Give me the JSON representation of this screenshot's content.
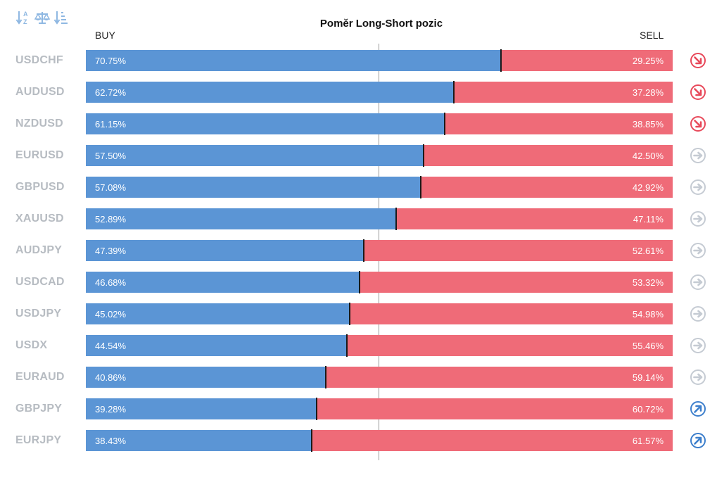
{
  "chart_data": {
    "type": "bar",
    "title": "Poměr Long-Short pozic",
    "xlabel": "",
    "ylabel": "",
    "left_label": "BUY",
    "right_label": "SELL",
    "xlim": [
      0,
      100
    ],
    "grid": false,
    "categories": [
      "USDCHF",
      "AUDUSD",
      "NZDUSD",
      "EURUSD",
      "GBPUSD",
      "XAUUSD",
      "AUDJPY",
      "USDCAD",
      "USDJPY",
      "USDX",
      "EURAUD",
      "GBPJPY",
      "EURJPY"
    ],
    "series": [
      {
        "name": "BUY",
        "color": "#5b95d5",
        "values": [
          70.75,
          62.72,
          61.15,
          57.5,
          57.08,
          52.89,
          47.39,
          46.68,
          45.02,
          44.54,
          40.86,
          39.28,
          38.43
        ]
      },
      {
        "name": "SELL",
        "color": "#ef6b78",
        "values": [
          29.25,
          37.28,
          38.85,
          42.5,
          42.92,
          47.11,
          52.61,
          53.32,
          54.98,
          55.46,
          59.14,
          60.72,
          61.57
        ]
      }
    ],
    "buy_labels": [
      "70.75%",
      "62.72%",
      "61.15%",
      "57.50%",
      "57.08%",
      "52.89%",
      "47.39%",
      "46.68%",
      "45.02%",
      "44.54%",
      "40.86%",
      "39.28%",
      "38.43%"
    ],
    "sell_labels": [
      "29.25%",
      "37.28%",
      "38.85%",
      "42.50%",
      "42.92%",
      "47.11%",
      "52.61%",
      "53.32%",
      "54.98%",
      "55.46%",
      "59.14%",
      "60.72%",
      "61.57%"
    ],
    "trend_icons": [
      "arrow-down-right",
      "arrow-down-right",
      "arrow-down-right",
      "arrow-right",
      "arrow-right",
      "arrow-right",
      "arrow-right",
      "arrow-right",
      "arrow-right",
      "arrow-right",
      "arrow-right",
      "arrow-up-right",
      "arrow-up-right"
    ],
    "trend_colors": [
      "#e8495a",
      "#e8495a",
      "#e8495a",
      "#c5cbd3",
      "#c5cbd3",
      "#c5cbd3",
      "#c5cbd3",
      "#c5cbd3",
      "#c5cbd3",
      "#c5cbd3",
      "#c5cbd3",
      "#3d7fcc",
      "#3d7fcc"
    ]
  },
  "toolbar": {
    "icons": [
      "sort-alpha-icon",
      "balance-scale-icon",
      "sort-list-icon"
    ],
    "color": "#8fb8e2"
  }
}
